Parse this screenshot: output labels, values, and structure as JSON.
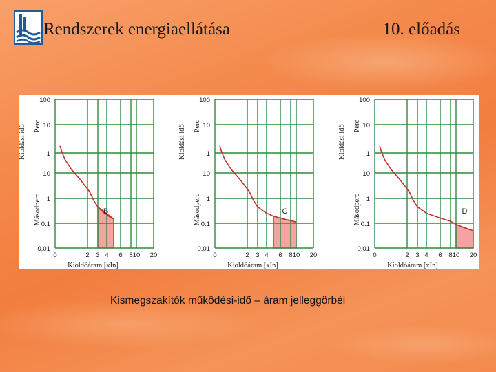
{
  "header": {
    "title": "Rendszerek energiaellátása",
    "lecture": "10. előadás",
    "logo_icon": "university-logo-icon"
  },
  "caption": "Kismegszakítók működési-idő – áram jelleggörbéi",
  "colors": {
    "grid": "#2e8b3c",
    "curve": "#c8302c",
    "band_fill": "#f3a3a1",
    "logo": "#1f5c9a"
  },
  "chart_data": [
    {
      "type": "line",
      "panel_label": "B",
      "ylabel": "Kioldási idő",
      "ylabel_upper": "Perc",
      "ylabel_lower": "Másodperc",
      "xlabel": "Kioldóáram [xIn]",
      "x_ticks": [
        "0",
        "2",
        "3",
        "4",
        "6",
        "8",
        "10",
        "20"
      ],
      "y_ticks_minutes": [
        "100",
        "10",
        "1"
      ],
      "y_ticks_seconds": [
        "10",
        "1",
        "0.1",
        "0,01"
      ],
      "curve": [
        [
          1.15,
          110
        ],
        [
          1.2,
          70
        ],
        [
          1.3,
          35
        ],
        [
          1.5,
          14
        ],
        [
          1.8,
          5
        ],
        [
          2.2,
          1.8
        ],
        [
          2.6,
          0.8
        ],
        [
          3,
          0.45
        ],
        [
          3.5,
          0.3
        ],
        [
          4,
          0.22
        ],
        [
          4.5,
          0.17
        ],
        [
          5,
          0.15
        ]
      ],
      "instant_band": [
        3,
        5
      ]
    },
    {
      "type": "line",
      "panel_label": "C",
      "ylabel": "Kioldási idő",
      "ylabel_upper": "Perc",
      "ylabel_lower": "Másodperc",
      "xlabel": "Kioldóáram [xIn]",
      "x_ticks": [
        "0",
        "2",
        "3",
        "4",
        "6",
        "8",
        "10",
        "20"
      ],
      "y_ticks_minutes": [
        "100",
        "10",
        "1"
      ],
      "y_ticks_seconds": [
        "10",
        "1",
        "0.1",
        "0,01"
      ],
      "curve": [
        [
          1.15,
          110
        ],
        [
          1.2,
          70
        ],
        [
          1.3,
          35
        ],
        [
          1.5,
          14
        ],
        [
          1.8,
          5
        ],
        [
          2.2,
          1.8
        ],
        [
          2.6,
          0.8
        ],
        [
          3,
          0.45
        ],
        [
          4,
          0.25
        ],
        [
          5,
          0.19
        ],
        [
          6,
          0.16
        ],
        [
          7,
          0.14
        ],
        [
          8,
          0.13
        ],
        [
          10,
          0.11
        ]
      ],
      "instant_band": [
        5,
        10
      ]
    },
    {
      "type": "line",
      "panel_label": "D",
      "ylabel": "Kioldási idő",
      "ylabel_upper": "Perc",
      "ylabel_lower": "Másodperc",
      "xlabel": "Kioldóáram [xIn]",
      "x_ticks": [
        "0",
        "2",
        "3",
        "4",
        "6",
        "8",
        "10",
        "20"
      ],
      "y_ticks_minutes": [
        "100",
        "10",
        "1"
      ],
      "y_ticks_seconds": [
        "10",
        "1",
        "0.1",
        "0,01"
      ],
      "curve": [
        [
          1.15,
          110
        ],
        [
          1.2,
          70
        ],
        [
          1.3,
          35
        ],
        [
          1.5,
          14
        ],
        [
          1.8,
          5
        ],
        [
          2.2,
          1.8
        ],
        [
          2.6,
          0.8
        ],
        [
          3,
          0.45
        ],
        [
          4,
          0.25
        ],
        [
          6,
          0.16
        ],
        [
          8,
          0.12
        ],
        [
          10,
          0.09
        ],
        [
          15,
          0.065
        ],
        [
          20,
          0.05
        ]
      ],
      "instant_band": [
        10,
        20
      ]
    }
  ]
}
